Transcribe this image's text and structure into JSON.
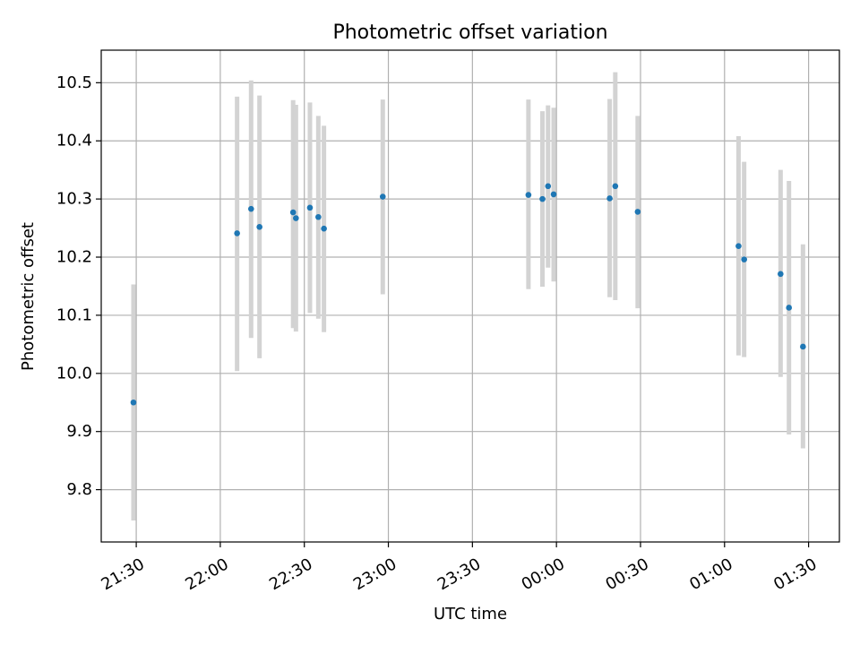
{
  "chart_data": {
    "type": "scatter",
    "title": "Photometric offset variation",
    "xlabel": "UTC time",
    "ylabel": "Photometric offset",
    "grid": true,
    "x_ticks": [
      "21:30",
      "22:00",
      "22:30",
      "23:00",
      "23:30",
      "00:00",
      "00:30",
      "01:00",
      "01:30"
    ],
    "x_tick_minutes": [
      0,
      30,
      60,
      90,
      120,
      150,
      180,
      210,
      240
    ],
    "xlim_minutes": [
      -12.5,
      251
    ],
    "y_ticks": [
      9.8,
      9.9,
      10.0,
      10.1,
      10.2,
      10.3,
      10.4,
      10.5
    ],
    "y_tick_labels": [
      "9.8",
      "9.9",
      "10.0",
      "10.1",
      "10.2",
      "10.3",
      "10.4",
      "10.5"
    ],
    "ylim": [
      9.71,
      10.556
    ],
    "colors": {
      "points": "#1f77b4",
      "errorbars": "#d3d3d3",
      "grid": "#b0b0b0"
    },
    "series": [
      {
        "points": [
          {
            "t": "21:29",
            "y": 9.95,
            "lo": 9.747,
            "hi": 10.153
          },
          {
            "t": "22:06",
            "y": 10.241,
            "lo": 10.004,
            "hi": 10.476
          },
          {
            "t": "22:11",
            "y": 10.283,
            "lo": 10.061,
            "hi": 10.504
          },
          {
            "t": "22:14",
            "y": 10.252,
            "lo": 10.026,
            "hi": 10.478
          },
          {
            "t": "22:26",
            "y": 10.277,
            "lo": 10.078,
            "hi": 10.47
          },
          {
            "t": "22:27",
            "y": 10.267,
            "lo": 10.072,
            "hi": 10.462
          },
          {
            "t": "22:32",
            "y": 10.285,
            "lo": 10.104,
            "hi": 10.466
          },
          {
            "t": "22:35",
            "y": 10.269,
            "lo": 10.094,
            "hi": 10.443
          },
          {
            "t": "22:37",
            "y": 10.249,
            "lo": 10.071,
            "hi": 10.426
          },
          {
            "t": "22:58",
            "y": 10.304,
            "lo": 10.136,
            "hi": 10.471
          },
          {
            "t": "23:50",
            "y": 10.307,
            "lo": 10.145,
            "hi": 10.471
          },
          {
            "t": "23:55",
            "y": 10.3,
            "lo": 10.149,
            "hi": 10.451
          },
          {
            "t": "23:57",
            "y": 10.322,
            "lo": 10.182,
            "hi": 10.461
          },
          {
            "t": "23:59",
            "y": 10.308,
            "lo": 10.158,
            "hi": 10.457
          },
          {
            "t": "00:19",
            "y": 10.301,
            "lo": 10.131,
            "hi": 10.472
          },
          {
            "t": "00:21",
            "y": 10.322,
            "lo": 10.126,
            "hi": 10.518
          },
          {
            "t": "00:29",
            "y": 10.278,
            "lo": 10.112,
            "hi": 10.443
          },
          {
            "t": "01:05",
            "y": 10.219,
            "lo": 10.031,
            "hi": 10.408
          },
          {
            "t": "01:07",
            "y": 10.196,
            "lo": 10.028,
            "hi": 10.364
          },
          {
            "t": "01:20",
            "y": 10.171,
            "lo": 9.994,
            "hi": 10.35
          },
          {
            "t": "01:23",
            "y": 10.113,
            "lo": 9.895,
            "hi": 10.331
          },
          {
            "t": "01:28",
            "y": 10.046,
            "lo": 9.871,
            "hi": 10.222
          }
        ]
      }
    ]
  }
}
